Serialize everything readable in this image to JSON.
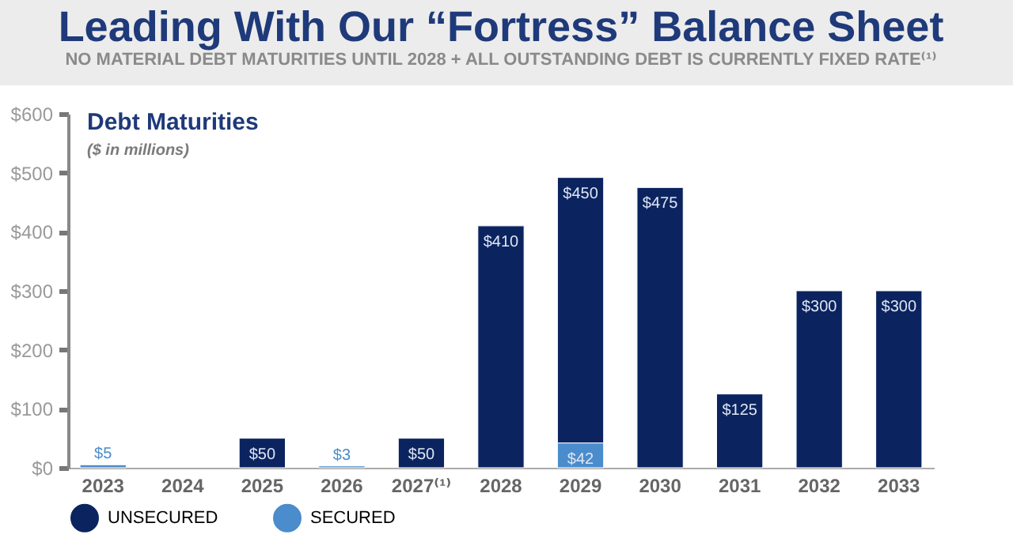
{
  "chart_data": {
    "type": "bar",
    "title": "Leading With Our “Fortress” Balance Sheet",
    "subtitle": "NO MATERIAL DEBT MATURITIES UNTIL 2028 + ALL OUTSTANDING DEBT IS CURRENTLY FIXED RATE⁽¹⁾",
    "annotations": [
      "Debt Maturities",
      "($ in millions)"
    ],
    "categories": [
      "2023",
      "2024",
      "2025",
      "2026",
      "2027⁽¹⁾",
      "2028",
      "2029",
      "2030",
      "2031",
      "2032",
      "2033"
    ],
    "stacked": true,
    "series": [
      {
        "name": "SECURED",
        "color": "#4a8ccc",
        "values": [
          5,
          null,
          null,
          3,
          null,
          null,
          42,
          null,
          null,
          null,
          null
        ],
        "value_labels": [
          "$5",
          null,
          null,
          "$3",
          null,
          null,
          "$42",
          null,
          null,
          null,
          null
        ]
      },
      {
        "name": "UNSECURED",
        "color": "#0b2460",
        "values": [
          null,
          null,
          50,
          null,
          50,
          410,
          450,
          475,
          125,
          300,
          300
        ],
        "value_labels": [
          null,
          null,
          "$50",
          null,
          "$50",
          "$410",
          "$450",
          "$475",
          "$125",
          "$300",
          "$300"
        ]
      }
    ],
    "ylim": [
      0,
      600
    ],
    "yticks": [
      {
        "value": 0,
        "label": "$0"
      },
      {
        "value": 100,
        "label": "$100"
      },
      {
        "value": 200,
        "label": "$200"
      },
      {
        "value": 300,
        "label": "$300"
      },
      {
        "value": 400,
        "label": "$400"
      },
      {
        "value": 500,
        "label": "$500"
      },
      {
        "value": 600,
        "label": "$600"
      }
    ],
    "grid": false,
    "legend": "bottom"
  }
}
